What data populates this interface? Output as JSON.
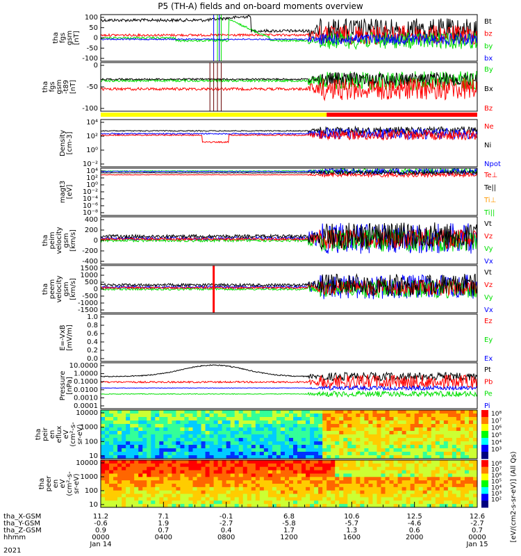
{
  "title": "P5 (TH-A) fields and on-board moments overview",
  "year": "2021",
  "colors": {
    "black": "#000000",
    "red": "#ff0000",
    "green": "#00e000",
    "blue": "#0000ff",
    "orange": "#ff9900",
    "yellow": "#ffff00"
  },
  "ephemeris": {
    "rows": [
      {
        "label": "tha_X-GSM",
        "values": [
          "11.2",
          "7.1",
          "-0.1",
          "6.8",
          "10.6",
          "12.5",
          "12.6"
        ]
      },
      {
        "label": "tha_Y-GSM",
        "values": [
          "-0.6",
          "1.9",
          "-2.7",
          "-5.8",
          "-5.7",
          "-4.6",
          "-2.7"
        ]
      },
      {
        "label": "tha_Z-GSM",
        "values": [
          "0.9",
          "0.7",
          "0.4",
          "1.7",
          "1.3",
          "0.6",
          "0.7"
        ]
      },
      {
        "label": "hhmm",
        "values": [
          "0000",
          "0400",
          "0800",
          "1200",
          "1600",
          "2000",
          "0000"
        ]
      }
    ],
    "dates": [
      "Jan 14",
      "Jan 15"
    ]
  },
  "chart_data": [
    {
      "id": "p1",
      "type": "line",
      "ylabel": [
        "tha",
        "fgs",
        "gsm",
        "[nT]"
      ],
      "ylim": [
        -100,
        100
      ],
      "yticks": [
        "100",
        "50",
        "0",
        "-50",
        "-100"
      ],
      "legend": [
        {
          "name": "Bt",
          "color": "black"
        },
        {
          "name": "bz",
          "color": "red"
        },
        {
          "name": "by",
          "color": "green"
        },
        {
          "name": "bx",
          "color": "blue"
        }
      ]
    },
    {
      "id": "p2",
      "type": "line",
      "ylabel": [
        "tha",
        "fgs",
        "gsm",
        "-t89",
        "[nT]"
      ],
      "ylim": [
        -125,
        50
      ],
      "yticks": [
        "0",
        "-50",
        "-100"
      ],
      "legend": [
        {
          "name": "By",
          "color": "green"
        },
        {
          "name": "Bx",
          "color": "black"
        },
        {
          "name": "Bz",
          "color": "red"
        }
      ]
    },
    {
      "id": "p3",
      "type": "line",
      "ylabel": [
        "Density",
        "[cm-3]"
      ],
      "log": true,
      "yticks": [
        "10⁴",
        "10²",
        "10⁰",
        "10⁻²"
      ],
      "legend": [
        {
          "name": "Ne",
          "color": "red"
        },
        {
          "name": "Ni",
          "color": "black"
        },
        {
          "name": "Npot",
          "color": "blue"
        }
      ]
    },
    {
      "id": "p4",
      "type": "line",
      "ylabel": [
        "magt3",
        "[eV]"
      ],
      "log": true,
      "yticks": [
        "10⁴",
        "10²",
        "10⁰",
        "10⁻²",
        "10⁻⁴",
        "10⁻⁶",
        "10⁻⁸"
      ],
      "legend": [
        {
          "name": "Te⊥",
          "color": "red"
        },
        {
          "name": "Te||",
          "color": "black"
        },
        {
          "name": "Ti⊥",
          "color": "orange"
        },
        {
          "name": "Ti||",
          "color": "green"
        }
      ]
    },
    {
      "id": "p5",
      "type": "line",
      "ylabel": [
        "tha",
        "peim",
        "velocity",
        "gsm",
        "[km/s]"
      ],
      "ylim": [
        -400,
        400
      ],
      "yticks": [
        "400",
        "200",
        "0",
        "-200",
        "-400"
      ],
      "legend": [
        {
          "name": "Vt",
          "color": "black"
        },
        {
          "name": "Vz",
          "color": "red"
        },
        {
          "name": "Vy",
          "color": "green"
        },
        {
          "name": "Vx",
          "color": "blue"
        }
      ]
    },
    {
      "id": "p6",
      "type": "line",
      "ylabel": [
        "tha",
        "peem",
        "velocity",
        "gsm",
        "[km/s]"
      ],
      "ylim": [
        -1500,
        1500
      ],
      "yticks": [
        "1500",
        "1000",
        "500",
        "0",
        "-500",
        "-1000",
        "-1500"
      ],
      "legend": [
        {
          "name": "Vt",
          "color": "black"
        },
        {
          "name": "Vz",
          "color": "red"
        },
        {
          "name": "Vy",
          "color": "green"
        },
        {
          "name": "Vx",
          "color": "blue"
        }
      ]
    },
    {
      "id": "p7",
      "type": "line",
      "ylabel": [
        "E=-VxB",
        "[mV/m]"
      ],
      "ylim": [
        0,
        1
      ],
      "yticks": [
        "1.0",
        "0.8",
        "0.6",
        "0.4",
        "0.2",
        "0.0"
      ],
      "legend": [
        {
          "name": "Ez",
          "color": "red"
        },
        {
          "name": "Ey",
          "color": "green"
        },
        {
          "name": "Ex",
          "color": "blue"
        }
      ]
    },
    {
      "id": "p8",
      "type": "line",
      "ylabel": [
        "Pressure",
        "[nPa]"
      ],
      "log": true,
      "yticks": [
        "10.0000",
        "1.0000",
        "0.1000",
        "0.0100",
        "0.0010",
        "0.0001"
      ],
      "legend": [
        {
          "name": "Pt",
          "color": "black"
        },
        {
          "name": "Pb",
          "color": "red"
        },
        {
          "name": "Pe",
          "color": "green"
        },
        {
          "name": "Pi",
          "color": "blue"
        }
      ]
    },
    {
      "id": "p9",
      "type": "heatmap",
      "ylabel": [
        "tha",
        "peir",
        "en",
        "eflux",
        "eV",
        "(cm²-s-",
        "sr-eV)"
      ],
      "yticks": [
        "10000",
        "1000",
        "100",
        "10"
      ],
      "colorbar": {
        "ticks": [
          "10⁸",
          "10⁷",
          "10⁶",
          "10⁵",
          "10⁴",
          "10³"
        ]
      }
    },
    {
      "id": "p10",
      "type": "heatmap",
      "ylabel": [
        "tha",
        "peer",
        "en",
        "eV",
        "(cm²-s-",
        "sr-eV)"
      ],
      "yticks": [
        "10000",
        "1000",
        "100",
        "10"
      ],
      "colorbar": {
        "ticks": [
          "10⁸",
          "10⁷",
          "10⁶",
          "10⁵",
          "10⁴",
          "10³",
          "10²"
        ]
      }
    }
  ],
  "colorbar_label": "[eV/(cm2-s-sr-eV)] (All Qs)"
}
